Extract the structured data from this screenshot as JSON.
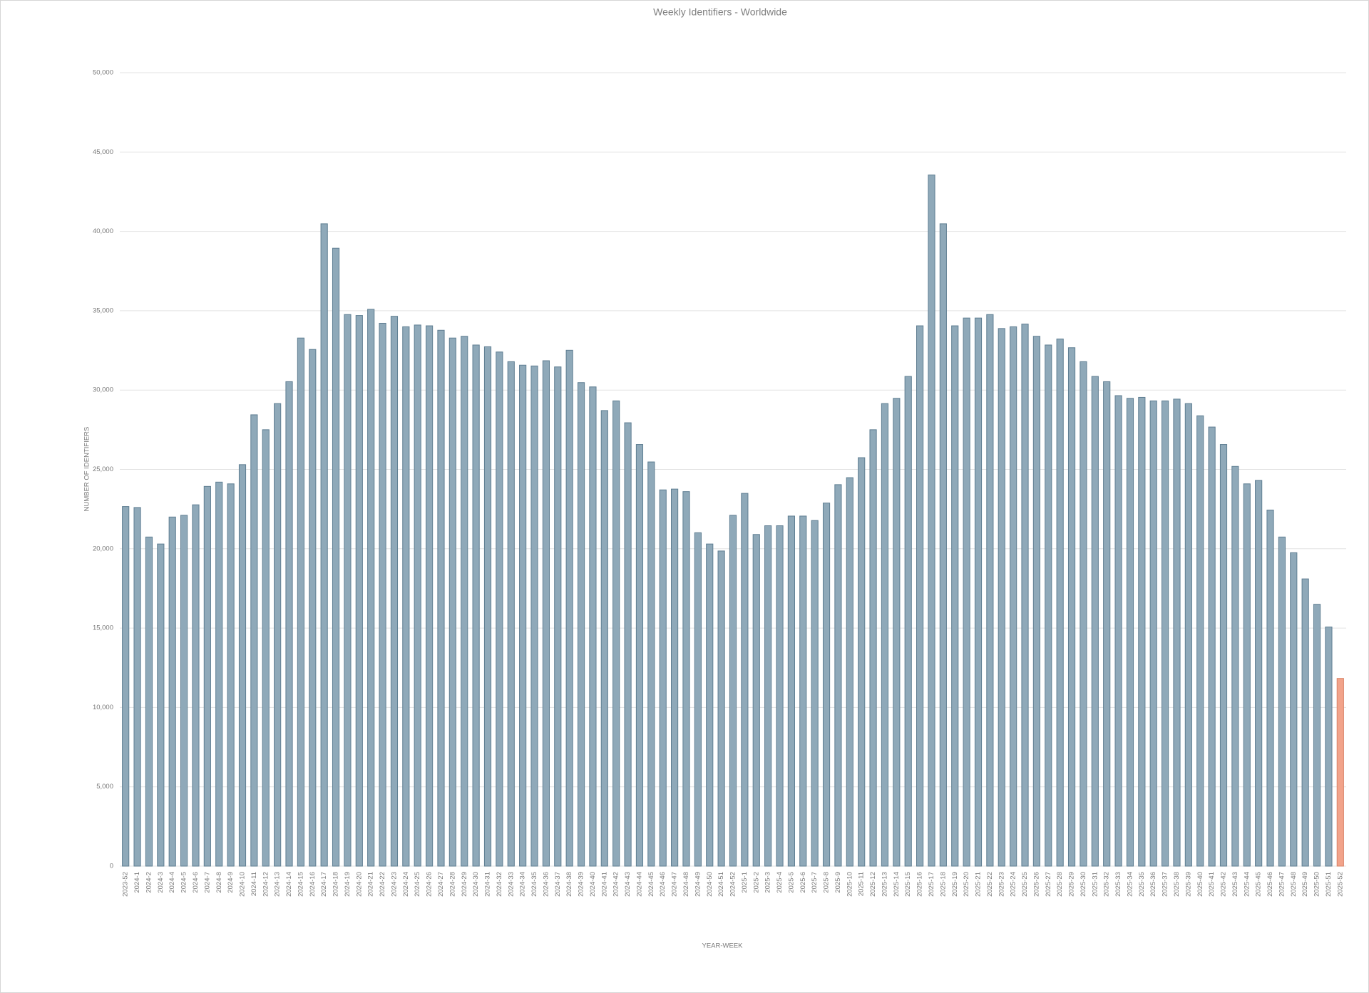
{
  "chart_data": {
    "type": "bar",
    "title": "Weekly Identifiers - Worldwide",
    "x_label": "YEAR-WEEK",
    "y_label": "NUMBER OF IDENTIFIERS",
    "categories": [
      "2023-52",
      "2024-1",
      "2024-2",
      "2024-3",
      "2024-4",
      "2024-5",
      "2024-6",
      "2024-7",
      "2024-8",
      "2024-9",
      "2024-10",
      "2024-11",
      "2024-12",
      "2024-13",
      "2024-14",
      "2024-15",
      "2024-16",
      "2024-17",
      "2024-18",
      "2024-19",
      "2024-20",
      "2024-21",
      "2024-22",
      "2024-23",
      "2024-24",
      "2024-25",
      "2024-26",
      "2024-27",
      "2024-28",
      "2024-29",
      "2024-30",
      "2024-31",
      "2024-32",
      "2024-33",
      "2024-34",
      "2024-35",
      "2024-36",
      "2024-37",
      "2024-38",
      "2024-39",
      "2024-40",
      "2024-41",
      "2024-42",
      "2024-43",
      "2024-44",
      "2024-45",
      "2024-46",
      "2024-47",
      "2024-48",
      "2024-49",
      "2024-50",
      "2024-51",
      "2024-52",
      "2025-1",
      "2025-2",
      "2025-3",
      "2025-4",
      "2025-5",
      "2025-6",
      "2025-7",
      "2025-8",
      "2025-9",
      "2025-10",
      "2025-11",
      "2025-12",
      "2025-13",
      "2025-14",
      "2025-15",
      "2025-16",
      "2025-17",
      "2025-18",
      "2025-19",
      "2025-20",
      "2025-21",
      "2025-22",
      "2025-23",
      "2025-24",
      "2025-25",
      "2025-26",
      "2025-27",
      "2025-28",
      "2025-29",
      "2025-30",
      "2025-31",
      "2025-32",
      "2025-33",
      "2025-34",
      "2025-35",
      "2025-36",
      "2025-37",
      "2025-38",
      "2025-39",
      "2025-40",
      "2025-41",
      "2025-42",
      "2025-43",
      "2025-44",
      "2025-45",
      "2025-46",
      "2025-47",
      "2025-48",
      "2025-49",
      "2025-50",
      "2025-51",
      "2025-52"
    ],
    "values": [
      22660,
      22600,
      20740,
      20300,
      22000,
      22110,
      22770,
      23930,
      24200,
      24090,
      25300,
      28440,
      27500,
      29150,
      30530,
      33280,
      32560,
      40480,
      38940,
      34760,
      34700,
      35090,
      34210,
      34650,
      33990,
      34100,
      34050,
      33770,
      33280,
      33390,
      32840,
      32730,
      32400,
      31790,
      31570,
      31520,
      31850,
      31460,
      32510,
      30470,
      30200,
      28710,
      29320,
      27940,
      26570,
      25470,
      23710,
      23760,
      23600,
      21010,
      20300,
      19860,
      22110,
      23490,
      20900,
      21450,
      21450,
      22060,
      22060,
      21780,
      22880,
      24040,
      24480,
      25740,
      27500,
      29150,
      29480,
      30860,
      34050,
      43560,
      40480,
      34050,
      34540,
      34540,
      34760,
      33880,
      33990,
      34160,
      33390,
      32840,
      33220,
      32670,
      31790,
      30860,
      30530,
      29650,
      29480,
      29540,
      29320,
      29320,
      29430,
      29150,
      28380,
      27670,
      26570,
      25190,
      24090,
      24310,
      22440,
      20740,
      19750,
      18100,
      16500,
      15070,
      11830
    ],
    "color": "#8fa9b9",
    "last_color": "#f2a38a",
    "ylim": [
      0,
      50000
    ],
    "yticks": [
      0,
      {
        "value": 5000,
        "label": "5,000"
      },
      {
        "value": 10000,
        "label": "10,000"
      },
      {
        "value": 15000,
        "label": "15,000"
      },
      {
        "value": 20000,
        "label": "20,000"
      },
      {
        "value": 25000,
        "label": "25,000"
      },
      {
        "value": 30000,
        "label": "30,000"
      },
      {
        "value": 35000,
        "label": "35,000"
      },
      {
        "value": 40000,
        "label": "40,000"
      },
      {
        "value": 45000,
        "label": "45,000"
      },
      {
        "value": 50000,
        "label": "50,000"
      }
    ],
    "grid": true
  }
}
